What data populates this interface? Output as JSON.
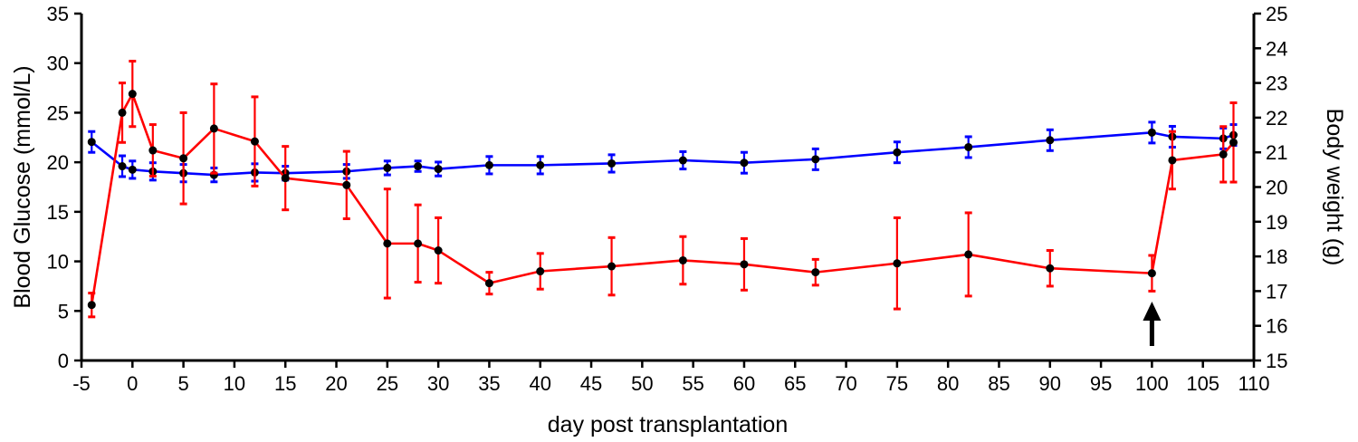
{
  "chart_data": {
    "type": "line",
    "xlabel": "day post transplantation",
    "ylabel": "Blood Glucose (mmol/L)",
    "y2label": "Body weight (g)",
    "xlim": [
      -5,
      110
    ],
    "ylim": [
      0,
      35
    ],
    "y2lim": [
      15,
      25
    ],
    "x_ticks": [
      -5,
      0,
      5,
      10,
      15,
      20,
      25,
      30,
      35,
      40,
      45,
      50,
      55,
      60,
      65,
      70,
      75,
      80,
      85,
      90,
      95,
      100,
      105,
      110
    ],
    "y_ticks": [
      0,
      5,
      10,
      15,
      20,
      25,
      30,
      35
    ],
    "y2_ticks": [
      15,
      16,
      17,
      18,
      19,
      20,
      21,
      22,
      23,
      24,
      25
    ],
    "grid": false,
    "legend": "none",
    "series": [
      {
        "axis": "left",
        "color": "#ff0000",
        "x": [
          -4,
          -1,
          0,
          2,
          5,
          8,
          12,
          15,
          21,
          25,
          28,
          30,
          35,
          40,
          47,
          54,
          60,
          67,
          75,
          82,
          90,
          100,
          102,
          107,
          108
        ],
        "values": [
          5.6,
          25.0,
          26.9,
          21.2,
          20.4,
          23.4,
          22.1,
          18.4,
          17.7,
          11.8,
          11.8,
          11.1,
          7.8,
          9.0,
          9.5,
          10.1,
          9.7,
          8.9,
          9.8,
          10.7,
          9.3,
          8.8,
          20.2,
          20.8,
          22.0
        ],
        "errors": [
          1.2,
          3.0,
          3.3,
          2.6,
          4.6,
          4.5,
          4.5,
          3.2,
          3.4,
          5.5,
          3.9,
          3.3,
          1.1,
          1.8,
          2.9,
          2.4,
          2.6,
          1.3,
          4.6,
          4.2,
          1.8,
          1.8,
          2.9,
          2.8,
          4.0
        ]
      },
      {
        "axis": "right",
        "color": "#0000ff",
        "x": [
          -4,
          -1,
          0,
          2,
          5,
          8,
          12,
          15,
          21,
          25,
          28,
          30,
          35,
          40,
          47,
          54,
          60,
          67,
          75,
          82,
          90,
          100,
          102,
          107,
          108
        ],
        "values": [
          21.3,
          20.6,
          20.5,
          20.45,
          20.4,
          20.35,
          20.42,
          20.4,
          20.45,
          20.55,
          20.6,
          20.52,
          20.63,
          20.63,
          20.68,
          20.77,
          20.7,
          20.8,
          21.0,
          21.15,
          21.35,
          21.57,
          21.45,
          21.4,
          21.5
        ],
        "errors": [
          0.3,
          0.3,
          0.25,
          0.25,
          0.25,
          0.2,
          0.25,
          0.2,
          0.2,
          0.2,
          0.15,
          0.2,
          0.25,
          0.25,
          0.25,
          0.25,
          0.3,
          0.3,
          0.3,
          0.3,
          0.3,
          0.3,
          0.3,
          0.3,
          0.3
        ]
      }
    ],
    "annotations": [
      {
        "type": "arrow",
        "x": 100,
        "direction": "up"
      }
    ]
  }
}
